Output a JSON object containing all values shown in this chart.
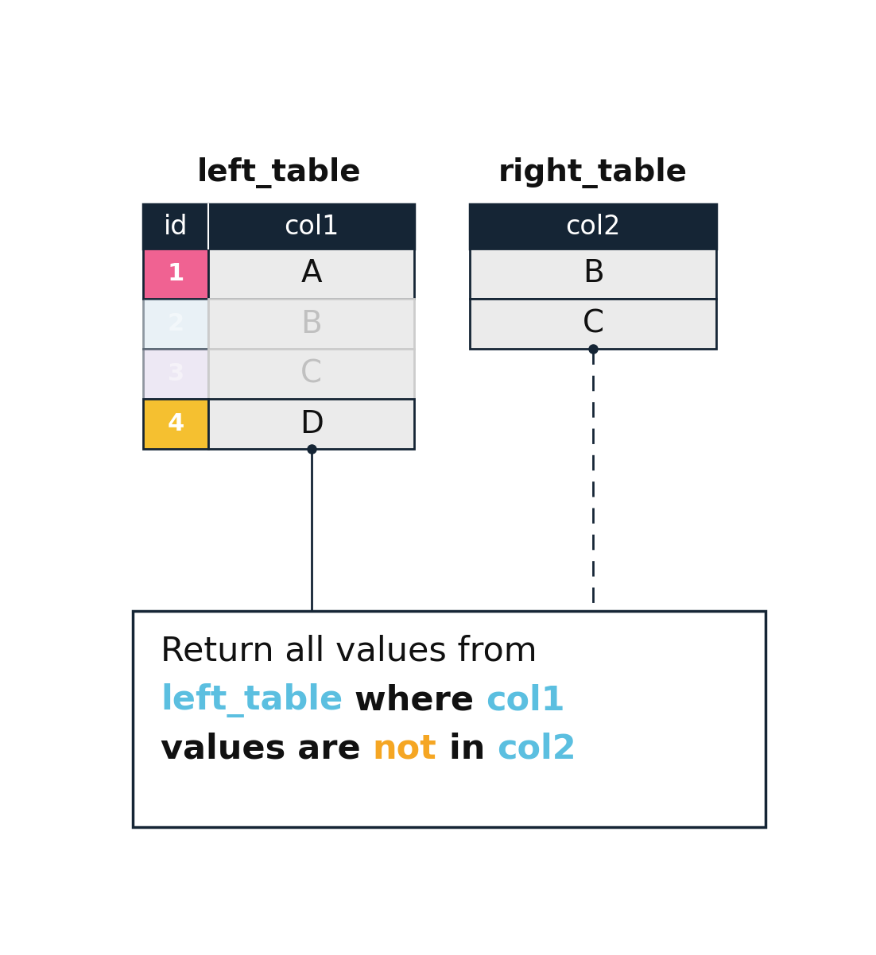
{
  "bg_color": "#ffffff",
  "header_color": "#152535",
  "header_text_color": "#ffffff",
  "cell_bg_normal": "#ebebeb",
  "border_color": "#152535",
  "faded_text_color": "#c0c0c0",
  "normal_text_color": "#111111",
  "dark_text_color": "#152535",
  "left_table_title": "left_table",
  "right_table_title": "right_table",
  "left_rows": [
    {
      "id": "1",
      "col1": "A",
      "id_color": "#f06292",
      "faded": false
    },
    {
      "id": "2",
      "col1": "B",
      "id_color": "#cfe0ed",
      "faded": true
    },
    {
      "id": "3",
      "col1": "C",
      "id_color": "#d8cce8",
      "faded": true
    },
    {
      "id": "4",
      "col1": "D",
      "id_color": "#f5c030",
      "faded": false
    }
  ],
  "right_rows": [
    "B",
    "C"
  ],
  "connector_color": "#152535",
  "blue_text": "#5bbfe0",
  "orange_text": "#f5a623"
}
